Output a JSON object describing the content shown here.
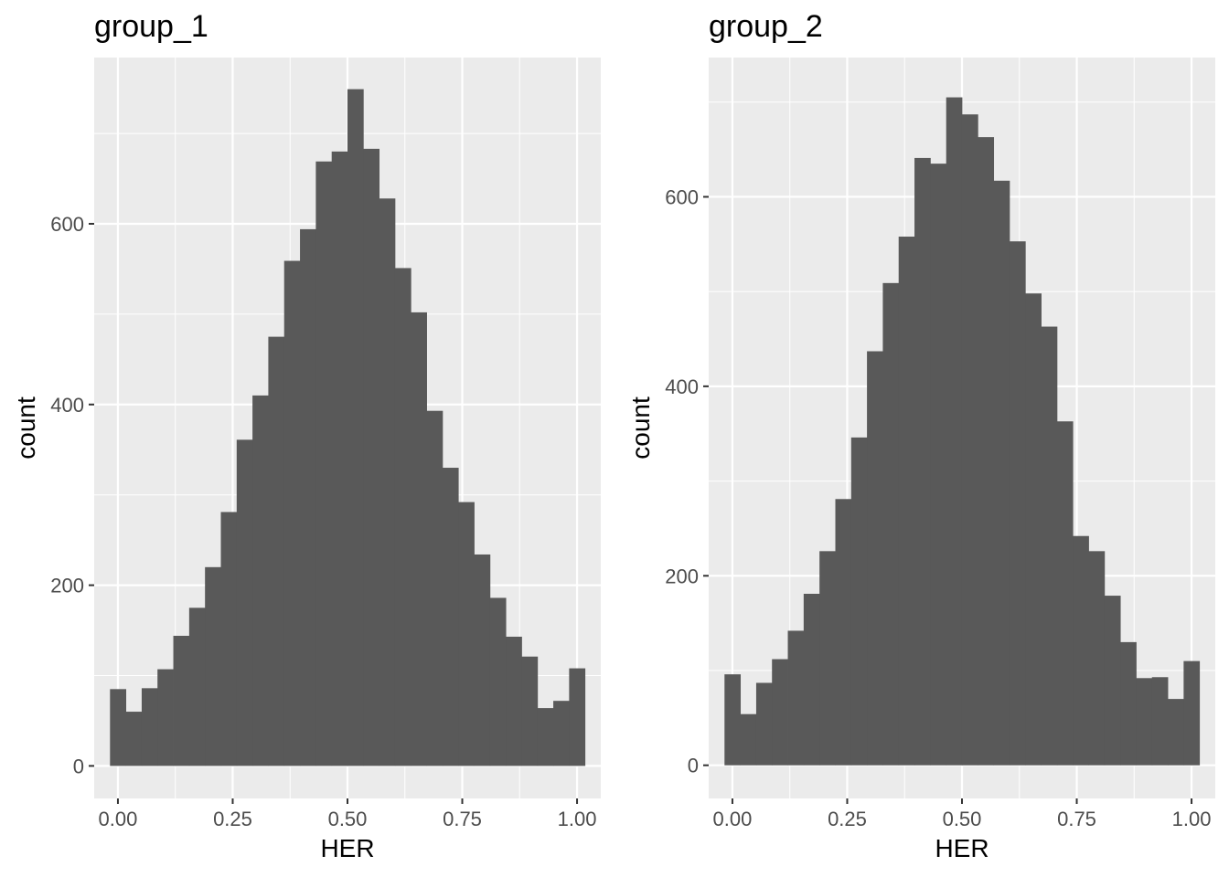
{
  "colors": {
    "panel_background": "#ebebeb",
    "grid_major": "#ffffff",
    "bar_fill": "#595959",
    "tick_mark": "#333333",
    "tick_label": "#4d4d4d"
  },
  "chart_data": [
    {
      "type": "bar",
      "subtype": "histogram",
      "title": "group_1",
      "xlabel": "HER",
      "ylabel": "count",
      "grid": true,
      "legend": "none",
      "xlim": [
        -0.0517,
        1.0517
      ],
      "ylim": [
        -36,
        784
      ],
      "x_ticks": [
        0,
        0.25,
        0.5,
        0.75,
        1
      ],
      "x_tick_labels": [
        "0.00",
        "0.25",
        "0.50",
        "0.75",
        "1.00"
      ],
      "y_ticks": [
        0,
        200,
        400,
        600
      ],
      "y_tick_labels": [
        "0",
        "200",
        "400",
        "600"
      ],
      "bin_width": 0.0345,
      "bin_centers": [
        0,
        0.0345,
        0.069,
        0.1034,
        0.1379,
        0.1724,
        0.2069,
        0.2414,
        0.2759,
        0.3103,
        0.3448,
        0.3793,
        0.4138,
        0.4483,
        0.4828,
        0.5172,
        0.5517,
        0.5862,
        0.6207,
        0.6552,
        0.6897,
        0.7241,
        0.7586,
        0.7931,
        0.8276,
        0.8621,
        0.8966,
        0.931,
        0.9655,
        1
      ],
      "values": [
        85,
        60,
        86,
        107,
        144,
        175,
        220,
        281,
        361,
        410,
        475,
        559,
        594,
        669,
        680,
        749,
        683,
        628,
        551,
        502,
        393,
        330,
        292,
        234,
        186,
        143,
        121,
        64,
        72,
        108
      ]
    },
    {
      "type": "bar",
      "subtype": "histogram",
      "title": "group_2",
      "xlabel": "HER",
      "ylabel": "count",
      "grid": true,
      "legend": "none",
      "xlim": [
        -0.0517,
        1.0517
      ],
      "ylim": [
        -35,
        747
      ],
      "x_ticks": [
        0,
        0.25,
        0.5,
        0.75,
        1
      ],
      "x_tick_labels": [
        "0.00",
        "0.25",
        "0.50",
        "0.75",
        "1.00"
      ],
      "y_ticks": [
        0,
        200,
        400,
        600
      ],
      "y_tick_labels": [
        "0",
        "200",
        "400",
        "600"
      ],
      "bin_width": 0.0345,
      "bin_centers": [
        0,
        0.0345,
        0.069,
        0.1034,
        0.1379,
        0.1724,
        0.2069,
        0.2414,
        0.2759,
        0.3103,
        0.3448,
        0.3793,
        0.4138,
        0.4483,
        0.4828,
        0.5172,
        0.5517,
        0.5862,
        0.6207,
        0.6552,
        0.6897,
        0.7241,
        0.7586,
        0.7931,
        0.8276,
        0.8621,
        0.8966,
        0.931,
        0.9655,
        1
      ],
      "values": [
        96,
        54,
        87,
        112,
        142,
        181,
        226,
        281,
        346,
        437,
        509,
        558,
        641,
        635,
        705,
        687,
        663,
        617,
        553,
        498,
        463,
        363,
        242,
        226,
        179,
        130,
        92,
        93,
        70,
        110
      ]
    }
  ]
}
